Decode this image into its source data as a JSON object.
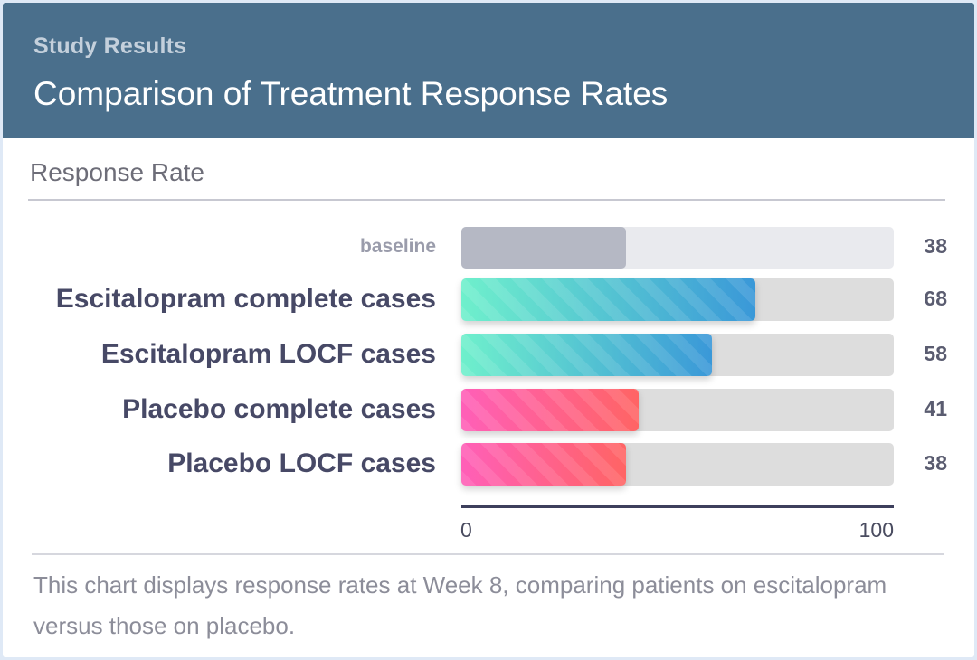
{
  "header": {
    "eyebrow": "Study Results",
    "title": "Comparison of Treatment Response Rates"
  },
  "section_title": "Response Rate",
  "caption": "This chart displays response rates at Week 8, comparing patients on escitalopram versus those on placebo.",
  "colors": {
    "header_bg": "#4a6f8c",
    "baseline_bar": "#b5b8c4",
    "escitalopram_gradient": [
      "#6ff0cc",
      "#3a98d8"
    ],
    "placebo_gradient": [
      "#ff5fb8",
      "#ff6464"
    ]
  },
  "chart_data": {
    "type": "bar",
    "orientation": "horizontal",
    "xlim": [
      0,
      100
    ],
    "tick_labels": [
      "0",
      "100"
    ],
    "grid": false,
    "categories": [
      "baseline",
      "Escitalopram complete cases",
      "Escitalopram LOCF cases",
      "Placebo complete cases",
      "Placebo LOCF cases"
    ],
    "values": [
      38,
      68,
      58,
      41,
      38
    ],
    "data_labels": [
      "38",
      "68",
      "58",
      "41",
      "38"
    ],
    "bar_groups": [
      "baseline",
      "escitalopram",
      "escitalopram",
      "placebo",
      "placebo"
    ]
  }
}
